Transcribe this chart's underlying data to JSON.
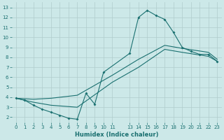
{
  "xlabel": "Humidex (Indice chaleur)",
  "bg_color": "#cce8e8",
  "grid_color": "#b0cccc",
  "line_color": "#1a7070",
  "xlim": [
    -0.5,
    23.5
  ],
  "ylim": [
    1.5,
    13.5
  ],
  "xticks": [
    0,
    1,
    2,
    3,
    4,
    5,
    6,
    7,
    8,
    9,
    10,
    11,
    13,
    14,
    15,
    16,
    17,
    18,
    19,
    20,
    21,
    22,
    23
  ],
  "yticks": [
    2,
    3,
    4,
    5,
    6,
    7,
    8,
    9,
    10,
    11,
    12,
    13
  ],
  "line1_x": [
    0,
    1,
    2,
    3,
    4,
    5,
    6,
    7,
    8,
    9,
    10,
    13,
    14,
    15,
    16,
    17,
    18,
    19,
    20,
    21,
    22,
    23
  ],
  "line1_y": [
    3.9,
    3.7,
    3.2,
    2.8,
    2.5,
    2.2,
    1.9,
    1.8,
    4.4,
    3.3,
    6.5,
    8.4,
    12.0,
    12.7,
    12.2,
    11.8,
    10.5,
    9.0,
    8.6,
    8.3,
    8.3,
    7.6
  ],
  "line2_x": [
    0,
    2,
    4,
    7,
    11,
    14,
    17,
    19,
    22,
    23
  ],
  "line2_y": [
    3.9,
    3.5,
    3.2,
    3.0,
    5.5,
    7.0,
    8.8,
    8.5,
    8.1,
    7.6
  ],
  "line3_x": [
    0,
    2,
    4,
    7,
    11,
    14,
    17,
    19,
    22,
    23
  ],
  "line3_y": [
    3.9,
    3.8,
    3.9,
    4.2,
    6.2,
    7.8,
    9.2,
    8.9,
    8.5,
    7.8
  ]
}
